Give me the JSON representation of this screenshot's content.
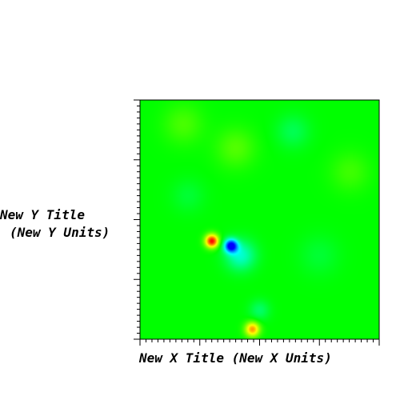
{
  "chart_data": {
    "type": "heatmap",
    "title": "",
    "xlabel": "New X Title (New X Units)",
    "ylabel_line1": "New Y Title",
    "ylabel_line2": "(New Y Units)",
    "xlim": [
      0,
      1
    ],
    "ylim": [
      0,
      1
    ],
    "tick_labels_shown": false,
    "grid": false,
    "colormap": [
      "#0000ff",
      "#00ffff",
      "#00ff00",
      "#ffff00",
      "#ff0000"
    ],
    "background_level": 0.5,
    "features": [
      {
        "x": 0.3,
        "y": 0.41,
        "level": 1.0,
        "spread": 0.02
      },
      {
        "x": 0.38,
        "y": 0.39,
        "level": 0.0,
        "spread": 0.02
      },
      {
        "x": 0.42,
        "y": 0.35,
        "level": 0.3,
        "spread": 0.045
      },
      {
        "x": 0.47,
        "y": 0.04,
        "level": 0.85,
        "spread": 0.022
      },
      {
        "x": 0.5,
        "y": 0.12,
        "level": 0.4,
        "spread": 0.03
      },
      {
        "x": 0.64,
        "y": 0.87,
        "level": 0.42,
        "spread": 0.05
      },
      {
        "x": 0.4,
        "y": 0.8,
        "level": 0.58,
        "spread": 0.06
      },
      {
        "x": 0.18,
        "y": 0.9,
        "level": 0.57,
        "spread": 0.06
      },
      {
        "x": 0.88,
        "y": 0.7,
        "level": 0.56,
        "spread": 0.06
      },
      {
        "x": 0.2,
        "y": 0.6,
        "level": 0.45,
        "spread": 0.05
      },
      {
        "x": 0.75,
        "y": 0.35,
        "level": 0.45,
        "spread": 0.06
      }
    ]
  }
}
